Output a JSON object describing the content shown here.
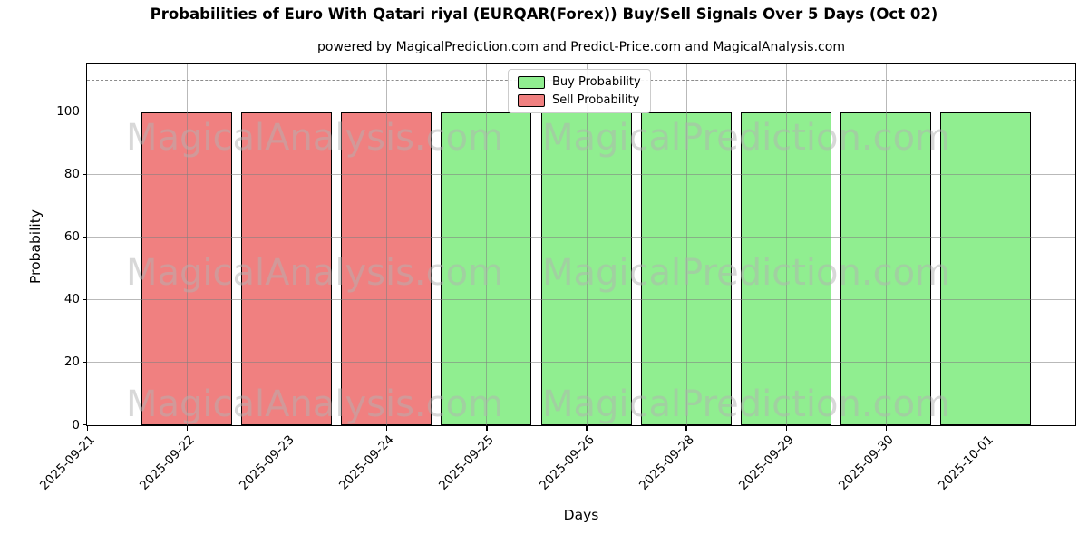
{
  "chart_data": {
    "type": "bar",
    "title": "Probabilities of Euro With Qatari riyal (EURQAR(Forex)) Buy/Sell Signals Over 5 Days (Oct 02)",
    "subtitle": "powered by MagicalPrediction.com and Predict-Price.com and MagicalAnalysis.com",
    "xlabel": "Days",
    "ylabel": "Probability",
    "categories": [
      "2025-09-21",
      "2025-09-22",
      "2025-09-23",
      "2025-09-24",
      "2025-09-25",
      "2025-09-26",
      "2025-09-28",
      "2025-09-29",
      "2025-09-30",
      "2025-10-01"
    ],
    "series": [
      {
        "name": "Buy Probability",
        "color": "#90ee90",
        "values": [
          0,
          0,
          0,
          0,
          100,
          100,
          100,
          100,
          100,
          100
        ]
      },
      {
        "name": "Sell Probability",
        "color": "#f08080",
        "values": [
          0,
          100,
          100,
          100,
          0,
          0,
          0,
          0,
          0,
          0
        ]
      }
    ],
    "yticks": [
      0,
      20,
      40,
      60,
      80,
      100
    ],
    "ylim": [
      0,
      115
    ],
    "dashed_line_y": 110,
    "grid": true,
    "legend_position": "top-center",
    "bar_edge_color": "#000000",
    "background_color": "#ffffff",
    "watermarks": [
      "MagicalAnalysis.com",
      "MagicalPrediction.com"
    ]
  }
}
